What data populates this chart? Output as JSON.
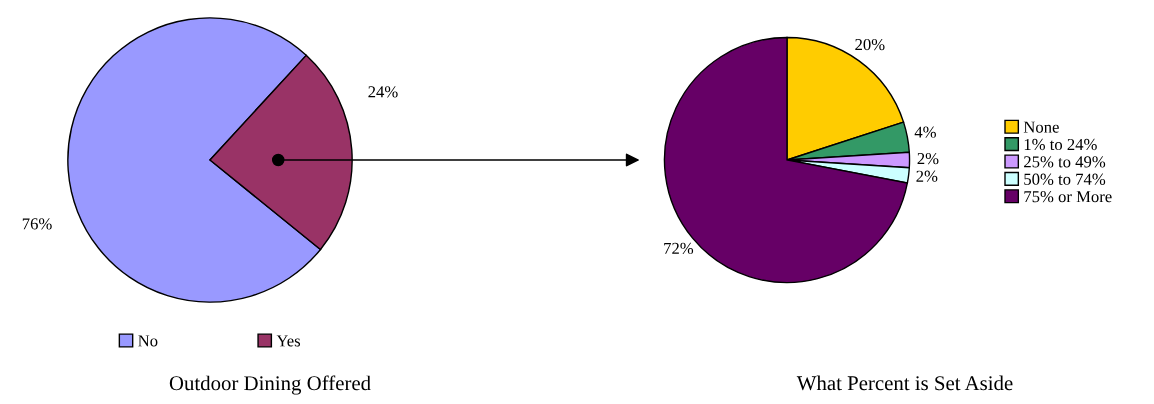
{
  "chart_data": [
    {
      "type": "pie",
      "title": "Outdoor Dining Offered",
      "categories": [
        "No",
        "Yes"
      ],
      "values": [
        76,
        24
      ],
      "colors": [
        "#9999ff",
        "#993366"
      ],
      "value_labels": [
        "76%",
        "24%"
      ],
      "legend": "bottom"
    },
    {
      "type": "pie",
      "title": "What Percent is Set Aside",
      "categories": [
        "None",
        "1% to 24%",
        "25% to 49%",
        "50% to 74%",
        "75% or More"
      ],
      "values": [
        20,
        4,
        2,
        2,
        72
      ],
      "colors": [
        "#ffcc00",
        "#339966",
        "#cc99ff",
        "#ccffff",
        "#660066"
      ],
      "value_labels": [
        "20%",
        "4%",
        "2%",
        "2%",
        "72%"
      ],
      "legend": "right"
    }
  ]
}
